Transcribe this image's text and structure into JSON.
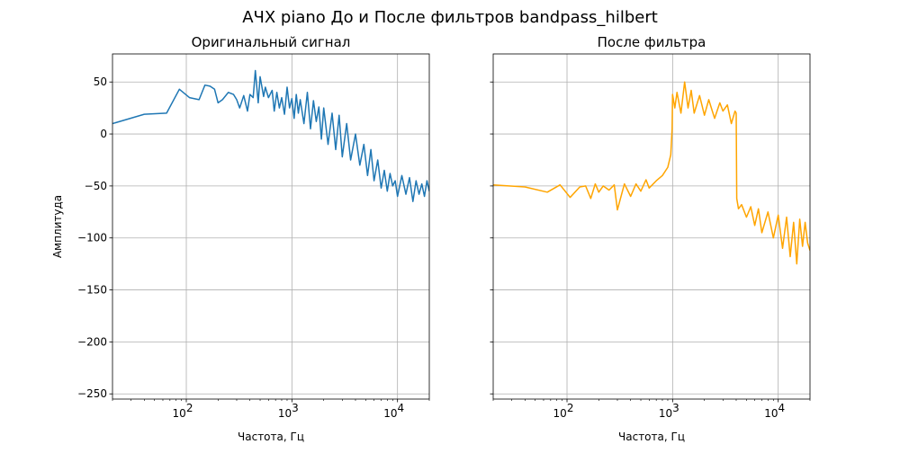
{
  "figure": {
    "suptitle": "АЧХ piano До и После фильтров bandpass_hilbert"
  },
  "chart_data": [
    {
      "type": "line",
      "title": "Оригинальный сигнал",
      "xlabel": "Частота, Гц",
      "ylabel": "Амплитуда",
      "xscale": "log",
      "xlim": [
        20,
        20000
      ],
      "ylim": [
        -255,
        77
      ],
      "yticks": [
        "50",
        "0",
        "−50",
        "−100",
        "−150",
        "−200",
        "−250"
      ],
      "ytick_values": [
        50,
        0,
        -50,
        -100,
        -150,
        -200,
        -250
      ],
      "xtick_values": [
        100,
        1000,
        10000
      ],
      "grid": true,
      "series": [
        {
          "color": "#1f77b4",
          "x": [
            20,
            40,
            65,
            86,
            107,
            132,
            150,
            168,
            185,
            200,
            220,
            250,
            280,
            300,
            320,
            350,
            380,
            400,
            430,
            450,
            480,
            500,
            540,
            560,
            600,
            650,
            680,
            720,
            760,
            800,
            850,
            900,
            950,
            1000,
            1050,
            1100,
            1150,
            1200,
            1300,
            1400,
            1500,
            1600,
            1700,
            1800,
            1900,
            2000,
            2200,
            2400,
            2600,
            2800,
            3000,
            3300,
            3600,
            4000,
            4400,
            4800,
            5200,
            5600,
            6000,
            6500,
            7000,
            7500,
            8000,
            8500,
            9000,
            9500,
            10000,
            11000,
            12000,
            13000,
            14000,
            15000,
            16000,
            17000,
            18000,
            19000,
            20000
          ],
          "y": [
            10,
            19,
            20,
            43,
            35,
            33,
            47,
            46,
            43,
            30,
            33,
            40,
            38,
            33,
            25,
            37,
            22,
            38,
            35,
            61,
            30,
            55,
            36,
            45,
            35,
            42,
            22,
            40,
            25,
            35,
            19,
            45,
            25,
            34,
            15,
            38,
            20,
            33,
            10,
            40,
            5,
            32,
            12,
            26,
            -5,
            25,
            -10,
            20,
            -15,
            18,
            -22,
            10,
            -25,
            0,
            -30,
            -10,
            -40,
            -15,
            -45,
            -25,
            -52,
            -35,
            -55,
            -38,
            -50,
            -45,
            -60,
            -40,
            -58,
            -42,
            -65,
            -45,
            -58,
            -48,
            -60,
            -45,
            -55
          ]
        }
      ]
    },
    {
      "type": "line",
      "title": "После фильтра",
      "xlabel": "Частота, Гц",
      "xscale": "log",
      "xlim": [
        20,
        20000
      ],
      "ylim": [
        -255,
        77
      ],
      "xtick_values": [
        100,
        1000,
        10000
      ],
      "grid": true,
      "series": [
        {
          "color": "#ffa500",
          "x": [
            20,
            40,
            65,
            86,
            107,
            132,
            150,
            168,
            185,
            200,
            220,
            250,
            280,
            300,
            350,
            400,
            450,
            500,
            560,
            600,
            700,
            800,
            900,
            960,
            990,
            1000,
            1050,
            1100,
            1200,
            1300,
            1400,
            1500,
            1600,
            1800,
            2000,
            2200,
            2500,
            2800,
            3000,
            3300,
            3600,
            3900,
            4000,
            4050,
            4200,
            4500,
            5000,
            5500,
            6000,
            6500,
            7000,
            8000,
            9000,
            10000,
            11000,
            12000,
            13000,
            14000,
            15000,
            16000,
            17000,
            18000,
            19000,
            20000
          ],
          "y": [
            -49,
            -51,
            -56,
            -49,
            -61,
            -51,
            -50,
            -62,
            -48,
            -56,
            -50,
            -54,
            -49,
            -73,
            -48,
            -60,
            -48,
            -55,
            -44,
            -52,
            -45,
            -40,
            -32,
            -20,
            5,
            38,
            25,
            40,
            20,
            50,
            25,
            42,
            20,
            37,
            18,
            33,
            15,
            30,
            22,
            28,
            10,
            22,
            20,
            -62,
            -72,
            -68,
            -80,
            -70,
            -88,
            -72,
            -95,
            -75,
            -100,
            -78,
            -110,
            -80,
            -118,
            -85,
            -125,
            -82,
            -108,
            -85,
            -105,
            -112
          ]
        }
      ]
    }
  ]
}
